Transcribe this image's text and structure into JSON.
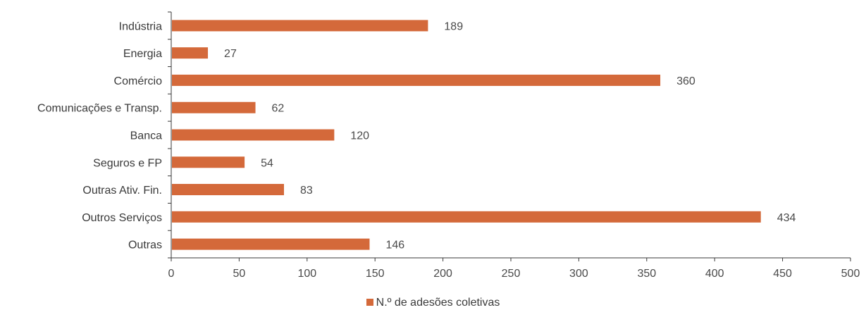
{
  "colors": {
    "bar": "#D4693A",
    "axis": "#3a3a3a"
  },
  "chart_data": {
    "type": "bar",
    "orientation": "horizontal",
    "categories": [
      "Indústria",
      "Energia",
      "Comércio",
      "Comunicações e Transp.",
      "Banca",
      "Seguros e FP",
      "Outras Ativ. Fin.",
      "Outros Serviços",
      "Outras"
    ],
    "series": [
      {
        "name": "N.º de adesões coletivas",
        "values": [
          189,
          27,
          360,
          62,
          120,
          54,
          83,
          434,
          146
        ]
      }
    ],
    "xlim": [
      0,
      500
    ],
    "xticks": [
      0,
      50,
      100,
      150,
      200,
      250,
      300,
      350,
      400,
      450,
      500
    ],
    "grid": false,
    "legend_position": "bottom"
  },
  "legend": {
    "label": "N.º de adesões coletivas"
  }
}
